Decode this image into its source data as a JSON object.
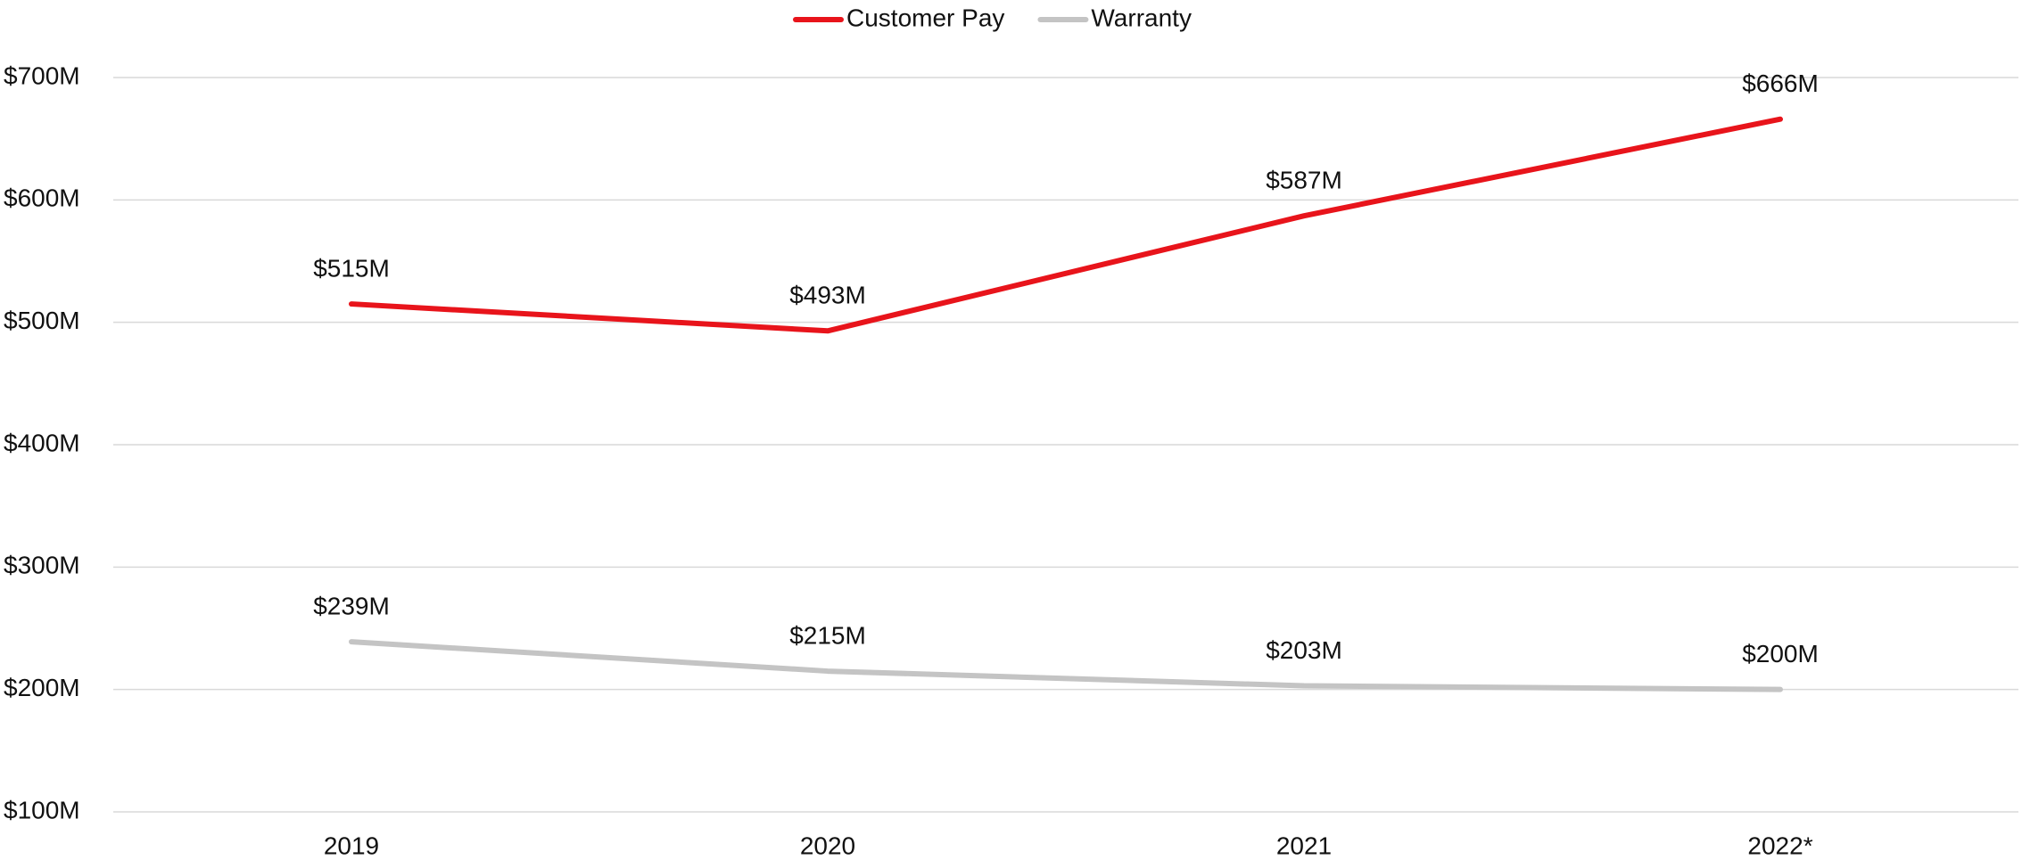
{
  "chart_data": {
    "type": "line",
    "categories": [
      "2019",
      "2020",
      "2021",
      "2022*"
    ],
    "series": [
      {
        "name": "Customer Pay",
        "color": "#e8141b",
        "values": [
          515,
          493,
          587,
          666
        ],
        "value_labels": [
          "$515M",
          "$493M",
          "$587M",
          "$666M"
        ]
      },
      {
        "name": "Warranty",
        "color": "#c4c4c4",
        "values": [
          239,
          215,
          203,
          200
        ],
        "value_labels": [
          "$239M",
          "$215M",
          "$203M",
          "$200M"
        ]
      }
    ],
    "ylim": [
      100,
      700
    ],
    "yticks": [
      {
        "value": 100,
        "label": "$100M"
      },
      {
        "value": 200,
        "label": "$200M"
      },
      {
        "value": 300,
        "label": "$300M"
      },
      {
        "value": 400,
        "label": "$400M"
      },
      {
        "value": 500,
        "label": "$500M"
      },
      {
        "value": 600,
        "label": "$600M"
      },
      {
        "value": 700,
        "label": "$700M"
      }
    ],
    "grid": true,
    "legend": "top"
  }
}
